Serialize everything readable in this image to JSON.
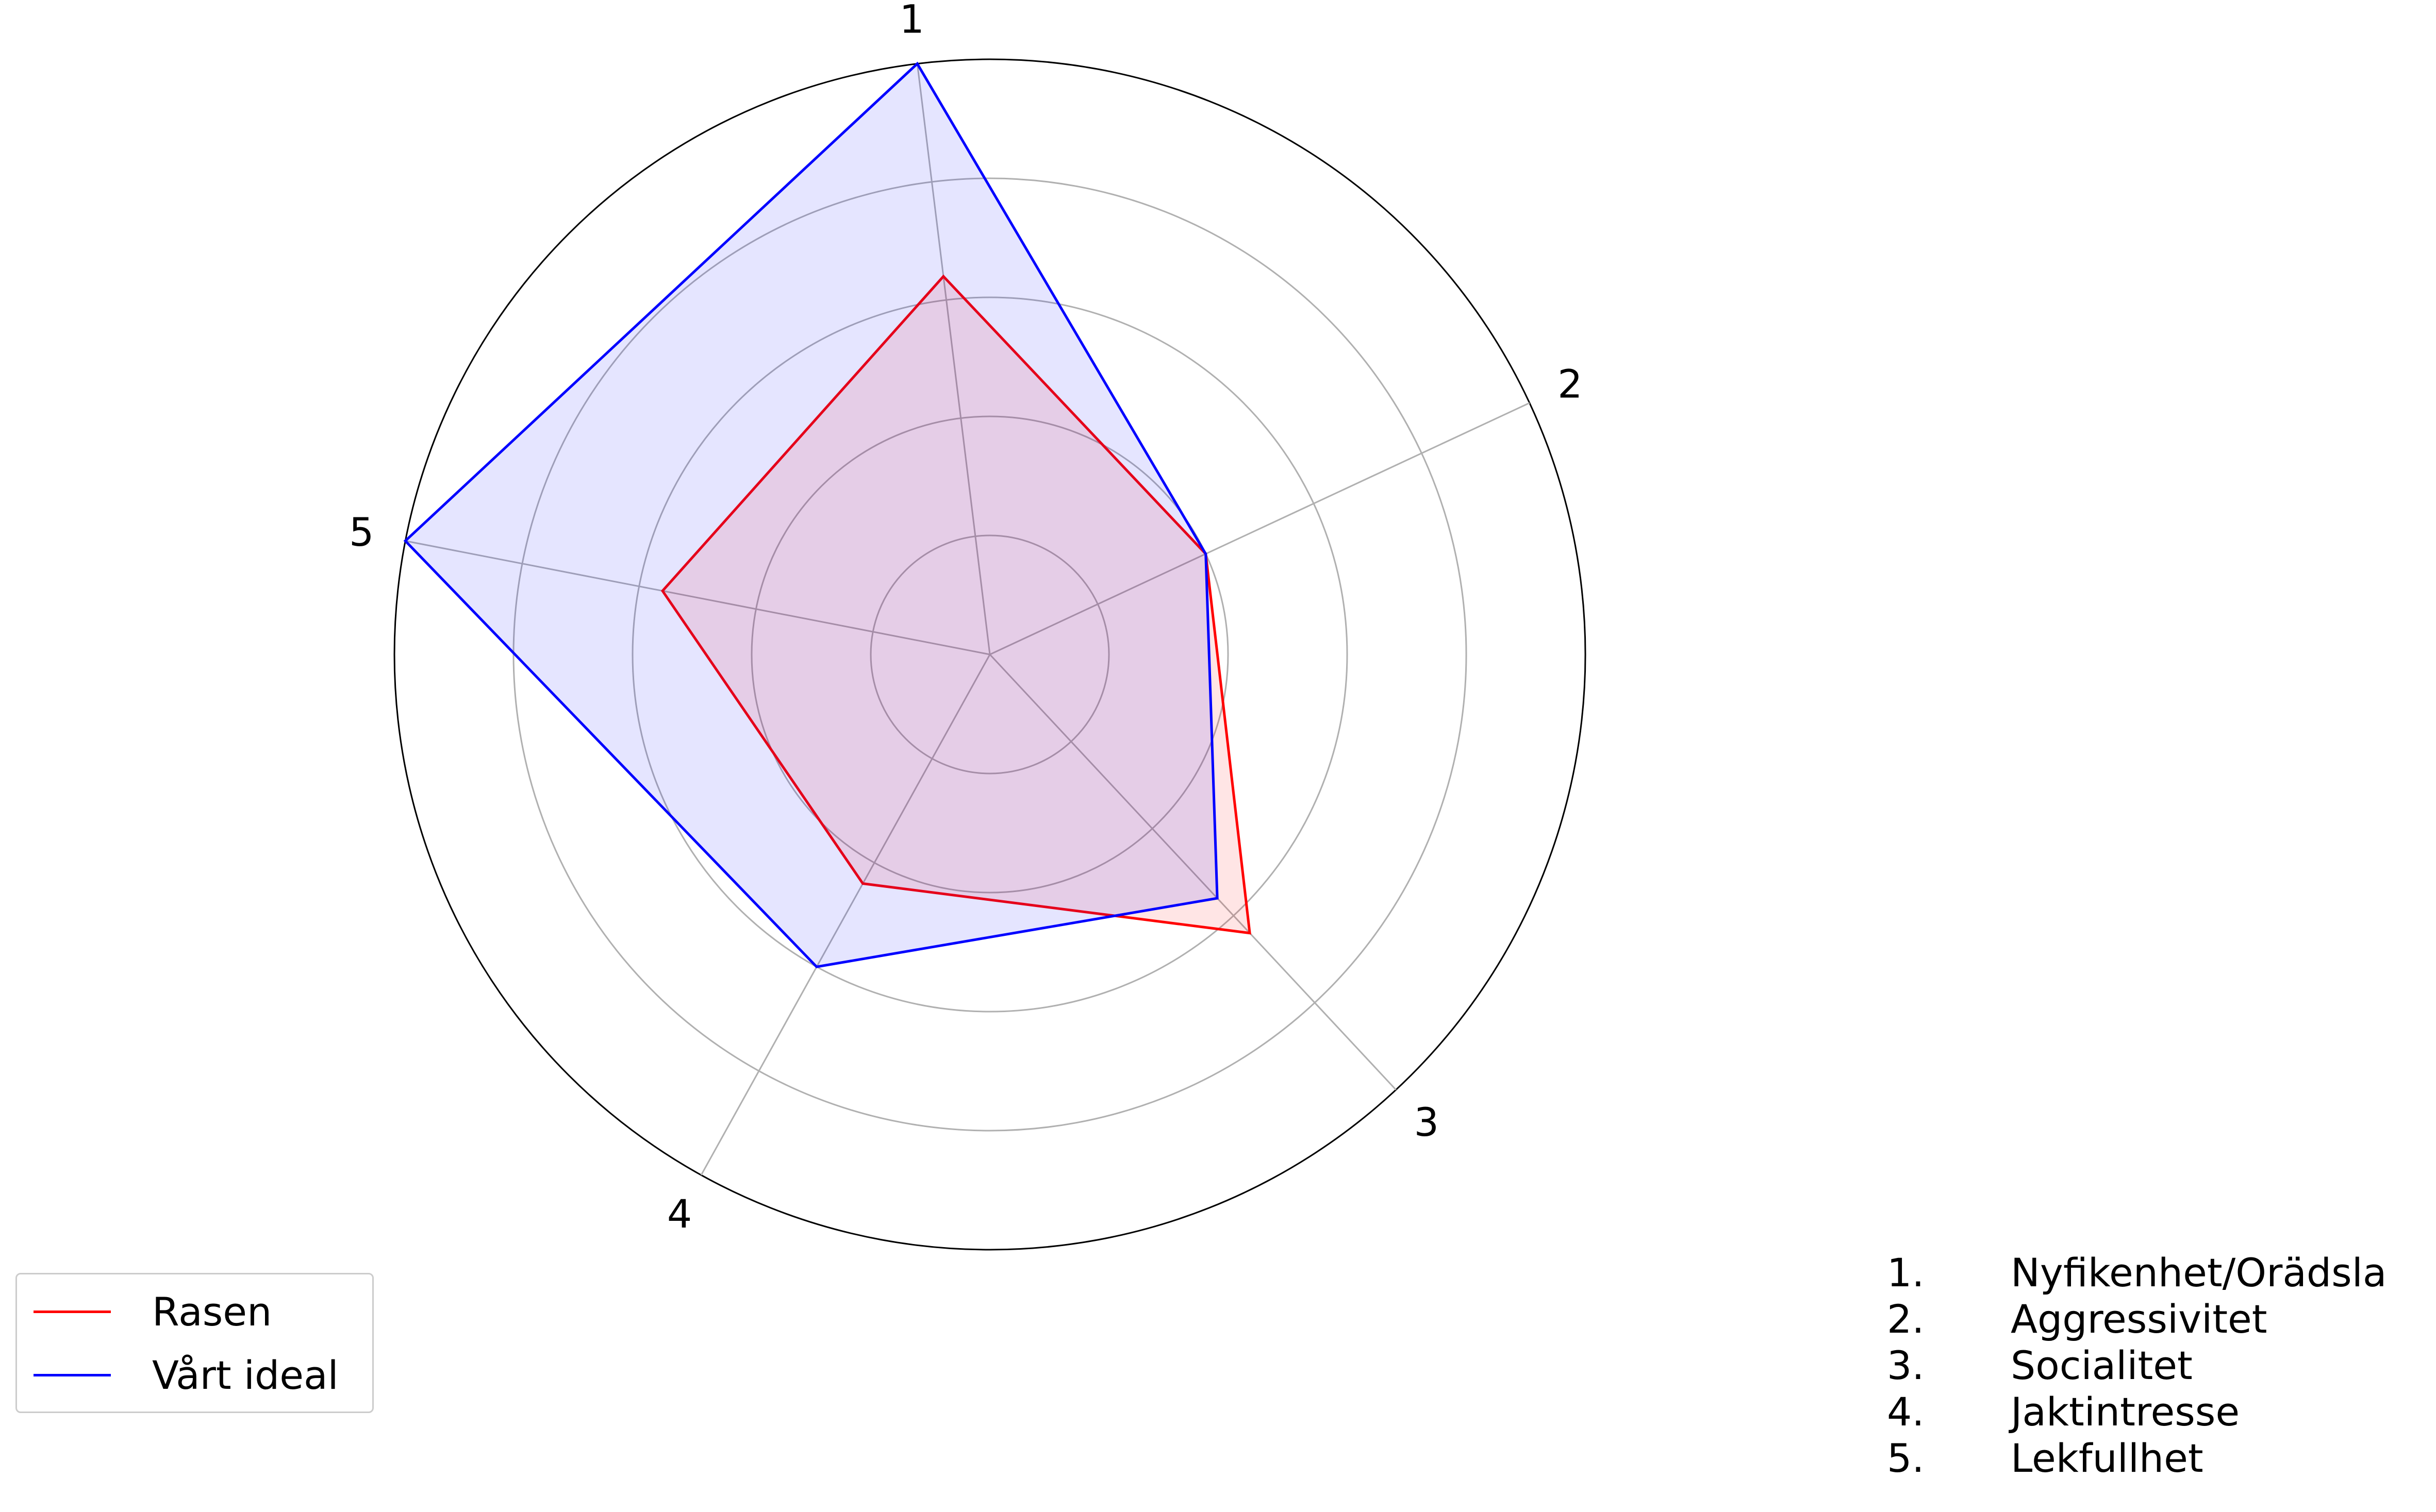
{
  "chart_data": {
    "type": "radar",
    "categories": [
      "1",
      "2",
      "3",
      "4",
      "5"
    ],
    "series": [
      {
        "name": "Rasen",
        "values": [
          3.2,
          2.0,
          3.2,
          2.2,
          2.8
        ],
        "color": "#ff0000",
        "fill": "rgba(255,0,0,0.10)"
      },
      {
        "name": "Vårt ideal",
        "values": [
          5.0,
          2.0,
          2.8,
          3.0,
          5.0
        ],
        "color": "#0000ff",
        "fill": "rgba(0,0,255,0.10)"
      }
    ],
    "rmax": 5,
    "ring_values": [
      1,
      2,
      3,
      4,
      5
    ],
    "grid": true,
    "legend_placement": "bottom-left"
  },
  "legend": {
    "items": [
      {
        "label": "Rasen",
        "color": "#ff0000"
      },
      {
        "label": "Vårt ideal",
        "color": "#0000ff"
      }
    ]
  },
  "notes": [
    {
      "num": "1.",
      "text": "Nyfikenhet/Orädsla"
    },
    {
      "num": "2.",
      "text": "Aggressivitet"
    },
    {
      "num": "3.",
      "text": "Socialitet"
    },
    {
      "num": "4.",
      "text": "Jaktintresse"
    },
    {
      "num": "5.",
      "text": "Lekfullhet"
    }
  ]
}
